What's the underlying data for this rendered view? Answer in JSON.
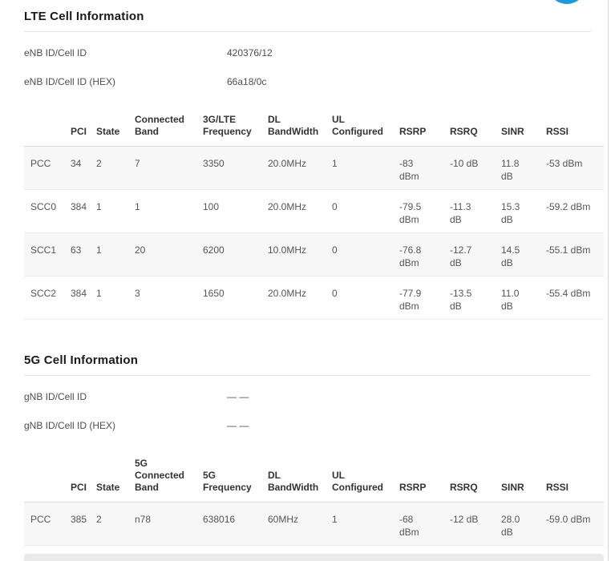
{
  "page": {
    "logo_color": "#1b9cd8",
    "row_shade_color": "#f7f7f7"
  },
  "sections": [
    {
      "id": "lte",
      "title": "LTE Cell Information",
      "info": [
        {
          "label": "eNB ID/Cell ID",
          "value": "420376/12"
        },
        {
          "label": "eNB ID/Cell ID (HEX)",
          "value": "66a18/0c"
        }
      ],
      "table": {
        "headers": [
          "",
          "PCI",
          "State",
          "Connected\nBand",
          "3G/LTE\nFrequency",
          "DL\nBandWidth",
          "UL\nConfigured",
          "RSRP",
          "RSRQ",
          "SINR",
          "RSSI"
        ],
        "rows": [
          [
            "PCC",
            "34",
            "2",
            "7",
            "3350",
            "20.0MHz",
            "1",
            "-83\ndBm",
            "-10 dB",
            "11.8 dB",
            "-53 dBm"
          ],
          [
            "SCC0",
            "384",
            "1",
            "1",
            "100",
            "20.0MHz",
            "0",
            "-79.5\ndBm",
            "-11.3\ndB",
            "15.3\ndB",
            "-59.2 dBm"
          ],
          [
            "SCC1",
            "63",
            "1",
            "20",
            "6200",
            "10.0MHz",
            "0",
            "-76.8\ndBm",
            "-12.7\ndB",
            "14.5\ndB",
            "-55.1 dBm"
          ],
          [
            "SCC2",
            "384",
            "1",
            "3",
            "1650",
            "20.0MHz",
            "0",
            "-77.9\ndBm",
            "-13.5\ndB",
            "11.0 dB",
            "-55.4 dBm"
          ]
        ]
      }
    },
    {
      "id": "5g",
      "title": "5G Cell Information",
      "info": [
        {
          "label": "gNB ID/Cell ID",
          "value": "— —"
        },
        {
          "label": "gNB ID/Cell ID (HEX)",
          "value": "— —"
        }
      ],
      "table": {
        "headers": [
          "",
          "PCI",
          "State",
          "5G\nConnected\nBand",
          "5G\nFrequency",
          "DL\nBandWidth",
          "UL\nConfigured",
          "RSRP",
          "RSRQ",
          "SINR",
          "RSSI"
        ],
        "rows": [
          [
            "PCC",
            "385",
            "2",
            "n78",
            "638016",
            "60MHz",
            "1",
            "-68\ndBm",
            "-12 dB",
            "28.0 dB",
            "-59.0 dBm"
          ]
        ]
      }
    }
  ]
}
